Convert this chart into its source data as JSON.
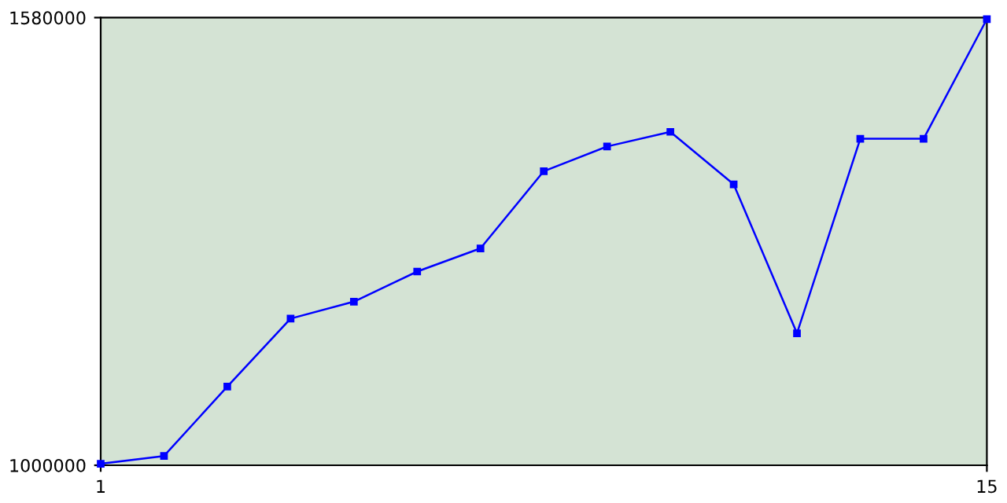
{
  "chart_data": {
    "type": "line",
    "x": [
      1,
      2,
      3,
      4,
      5,
      6,
      7,
      8,
      9,
      10,
      11,
      12,
      13,
      14,
      15
    ],
    "series": [
      {
        "color": "#0000ff",
        "values": [
          1002000,
          1012000,
          1102000,
          1190000,
          1212000,
          1251000,
          1281000,
          1381000,
          1413000,
          1432000,
          1364000,
          1171000,
          1423000,
          1423000,
          1578000
        ]
      }
    ],
    "xlim": [
      1,
      15
    ],
    "ylim": [
      1000000,
      1580000
    ],
    "xticks": [
      1,
      15
    ],
    "yticks": [
      1000000,
      1580000
    ],
    "marker": "square",
    "line_style": "solid",
    "grid": false,
    "legend": false
  }
}
